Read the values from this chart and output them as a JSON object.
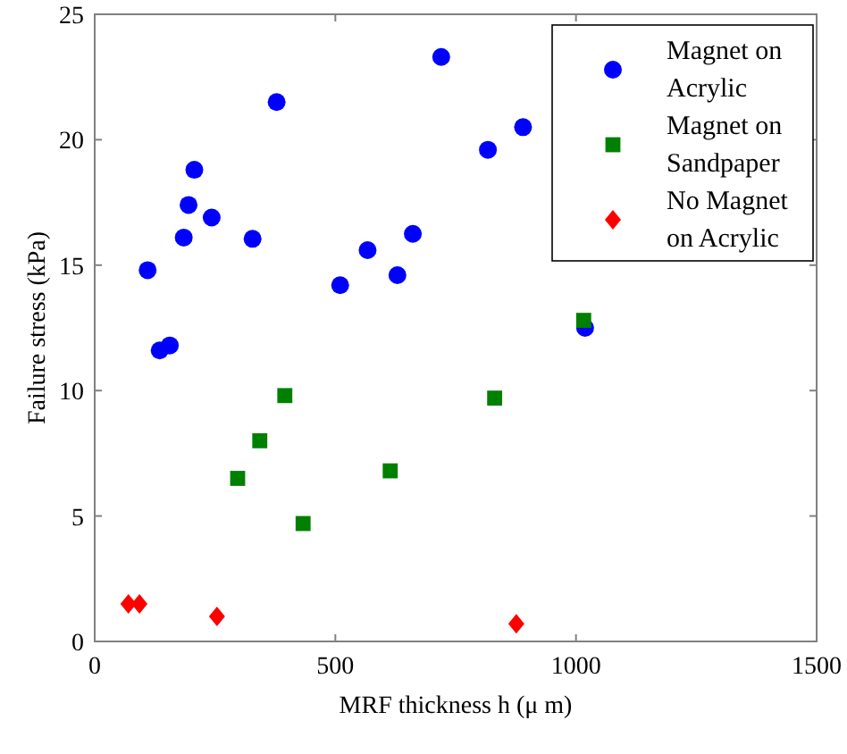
{
  "chart_data": {
    "type": "scatter",
    "xlabel": "MRF thickness h (μ m)",
    "ylabel": "Failure stress (kPa)",
    "xlim": [
      0,
      1500
    ],
    "ylim": [
      0,
      25
    ],
    "xticks": [
      0,
      500,
      1000,
      1500
    ],
    "yticks": [
      0,
      5,
      10,
      15,
      20,
      25
    ],
    "grid": false,
    "legend": "top right",
    "series": [
      {
        "name": "Magnet on Acrylic",
        "color": "#0000ff",
        "marker": "circle",
        "x": [
          720,
          378,
          207,
          195,
          243,
          185,
          328,
          110,
          135,
          156,
          510,
          567,
          629,
          661,
          817,
          890,
          1019
        ],
        "values": [
          23.3,
          21.5,
          18.8,
          17.4,
          16.9,
          16.1,
          16.05,
          14.8,
          11.6,
          11.8,
          14.2,
          15.6,
          14.6,
          16.25,
          19.6,
          20.5,
          12.5
        ]
      },
      {
        "name": "Magnet on Sandpaper",
        "color": "#008000",
        "marker": "square",
        "x": [
          395,
          343,
          297,
          614,
          433,
          831,
          1016
        ],
        "values": [
          9.8,
          8.0,
          6.5,
          6.8,
          4.7,
          9.7,
          12.8
        ]
      },
      {
        "name": "No Magnet on Acrylic",
        "color": "#ff0000",
        "marker": "diamond",
        "x": [
          70,
          93,
          254,
          876
        ],
        "values": [
          1.5,
          1.5,
          1.0,
          0.7
        ]
      }
    ]
  }
}
